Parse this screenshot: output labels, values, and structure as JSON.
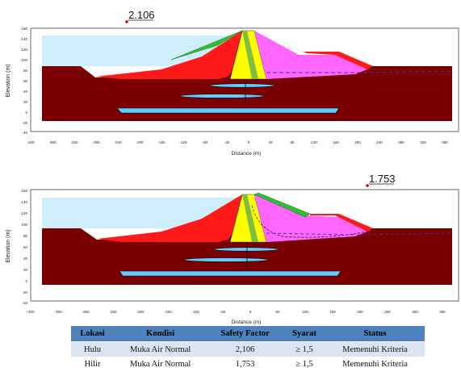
{
  "panels": [
    {
      "safety_factor": "2.106",
      "xlabel": "Distance (m)",
      "ylabel": "Elevation (m)",
      "x_ticks": [
        "-400",
        "-360",
        "-320",
        "-280",
        "-240",
        "-200",
        "-160",
        "-120",
        "-80",
        "-40",
        "0",
        "40",
        "80",
        "120",
        "160",
        "200",
        "240",
        "280",
        "320",
        "360"
      ],
      "y_ticks": [
        "160",
        "140",
        "120",
        "100",
        "80",
        "60",
        "40",
        "20",
        "0",
        "-20",
        "-40"
      ]
    },
    {
      "safety_factor": "1.753",
      "xlabel": "Distance (m)",
      "ylabel": "Elevation (m)",
      "x_ticks": [
        "-400",
        "-350",
        "-300",
        "-250",
        "-200",
        "-150",
        "-100",
        "-50",
        "0",
        "50",
        "100",
        "150",
        "200",
        "250",
        "300",
        "350"
      ],
      "y_ticks": [
        "160",
        "140",
        "120",
        "100",
        "80",
        "60",
        "40",
        "20",
        "0",
        "-20",
        "-40"
      ]
    }
  ],
  "table": {
    "headers": [
      "Lokasi",
      "Kondisi",
      "Safety Factor",
      "Syarat",
      "Status"
    ],
    "rows": [
      [
        "Hulu",
        "Muka Air Normal",
        "2,106",
        "≥ 1,5",
        "Memenuhi Kriteria"
      ],
      [
        "Hilir",
        "Muka Air Normal",
        "1,753",
        "≥ 1,5",
        "Memenuhi Kriteria"
      ]
    ]
  },
  "colors": {
    "foundation": "#7a0000",
    "reservoir": "#cfeefb",
    "shell_upstream": "#ff1a1a",
    "core": "#ffff00",
    "filter": "#7fbf3f",
    "shell_downstream": "#ff66ff",
    "slip_surface": "#33cc33",
    "lens": "#66ccff"
  }
}
